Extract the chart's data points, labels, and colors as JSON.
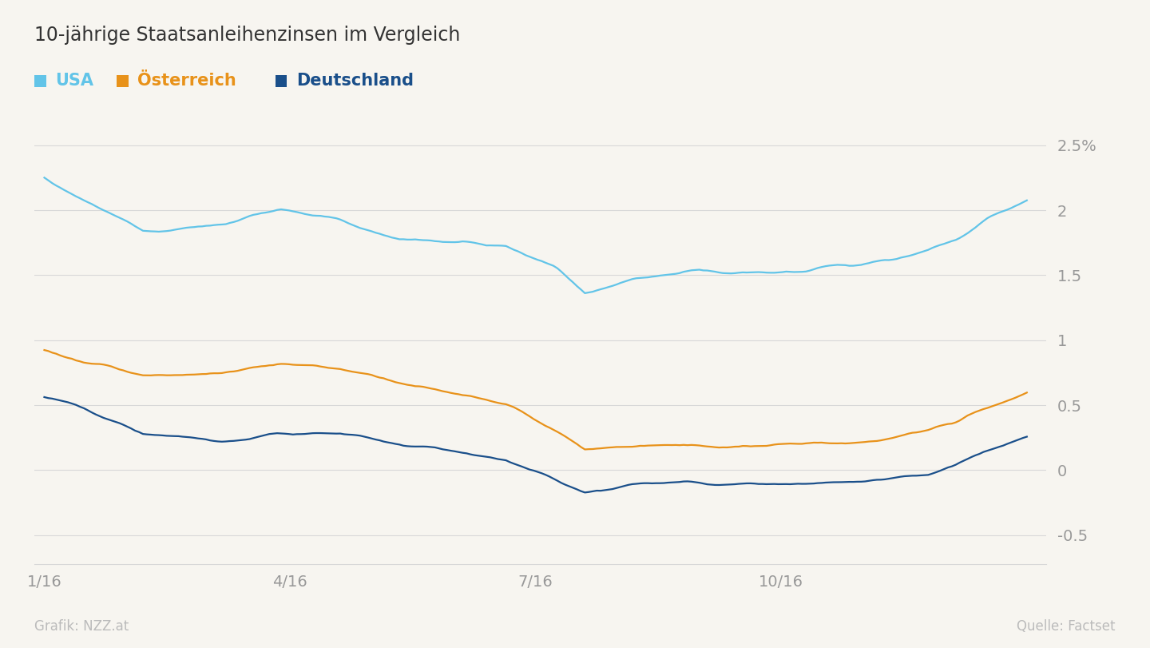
{
  "title": "10-jährige Staatsanleihenzinsen im Vergleich",
  "legend_items": [
    {
      "label": "USA",
      "color": "#62c4e8"
    },
    {
      "label": "Österreich",
      "color": "#e8921a"
    },
    {
      "label": "Deutschland",
      "color": "#1a4f8a"
    }
  ],
  "background_color": "#f7f5f0",
  "grid_color": "#d8d8d8",
  "yticks": [
    -0.5,
    0.0,
    0.5,
    1.0,
    1.5,
    2.0,
    2.5
  ],
  "xtick_labels": [
    "1/16",
    "4/16",
    "7/16",
    "10/16"
  ],
  "xtick_positions": [
    0.0,
    0.25,
    0.5,
    0.75
  ],
  "xlim": [
    -0.01,
    1.02
  ],
  "ylim": [
    -0.72,
    2.72
  ],
  "footer_left": "Grafik: NZZ.at",
  "footer_right": "Quelle: Factset",
  "title_fontsize": 17,
  "legend_fontsize": 15,
  "tick_fontsize": 14,
  "footer_fontsize": 12,
  "line_width": 1.6
}
